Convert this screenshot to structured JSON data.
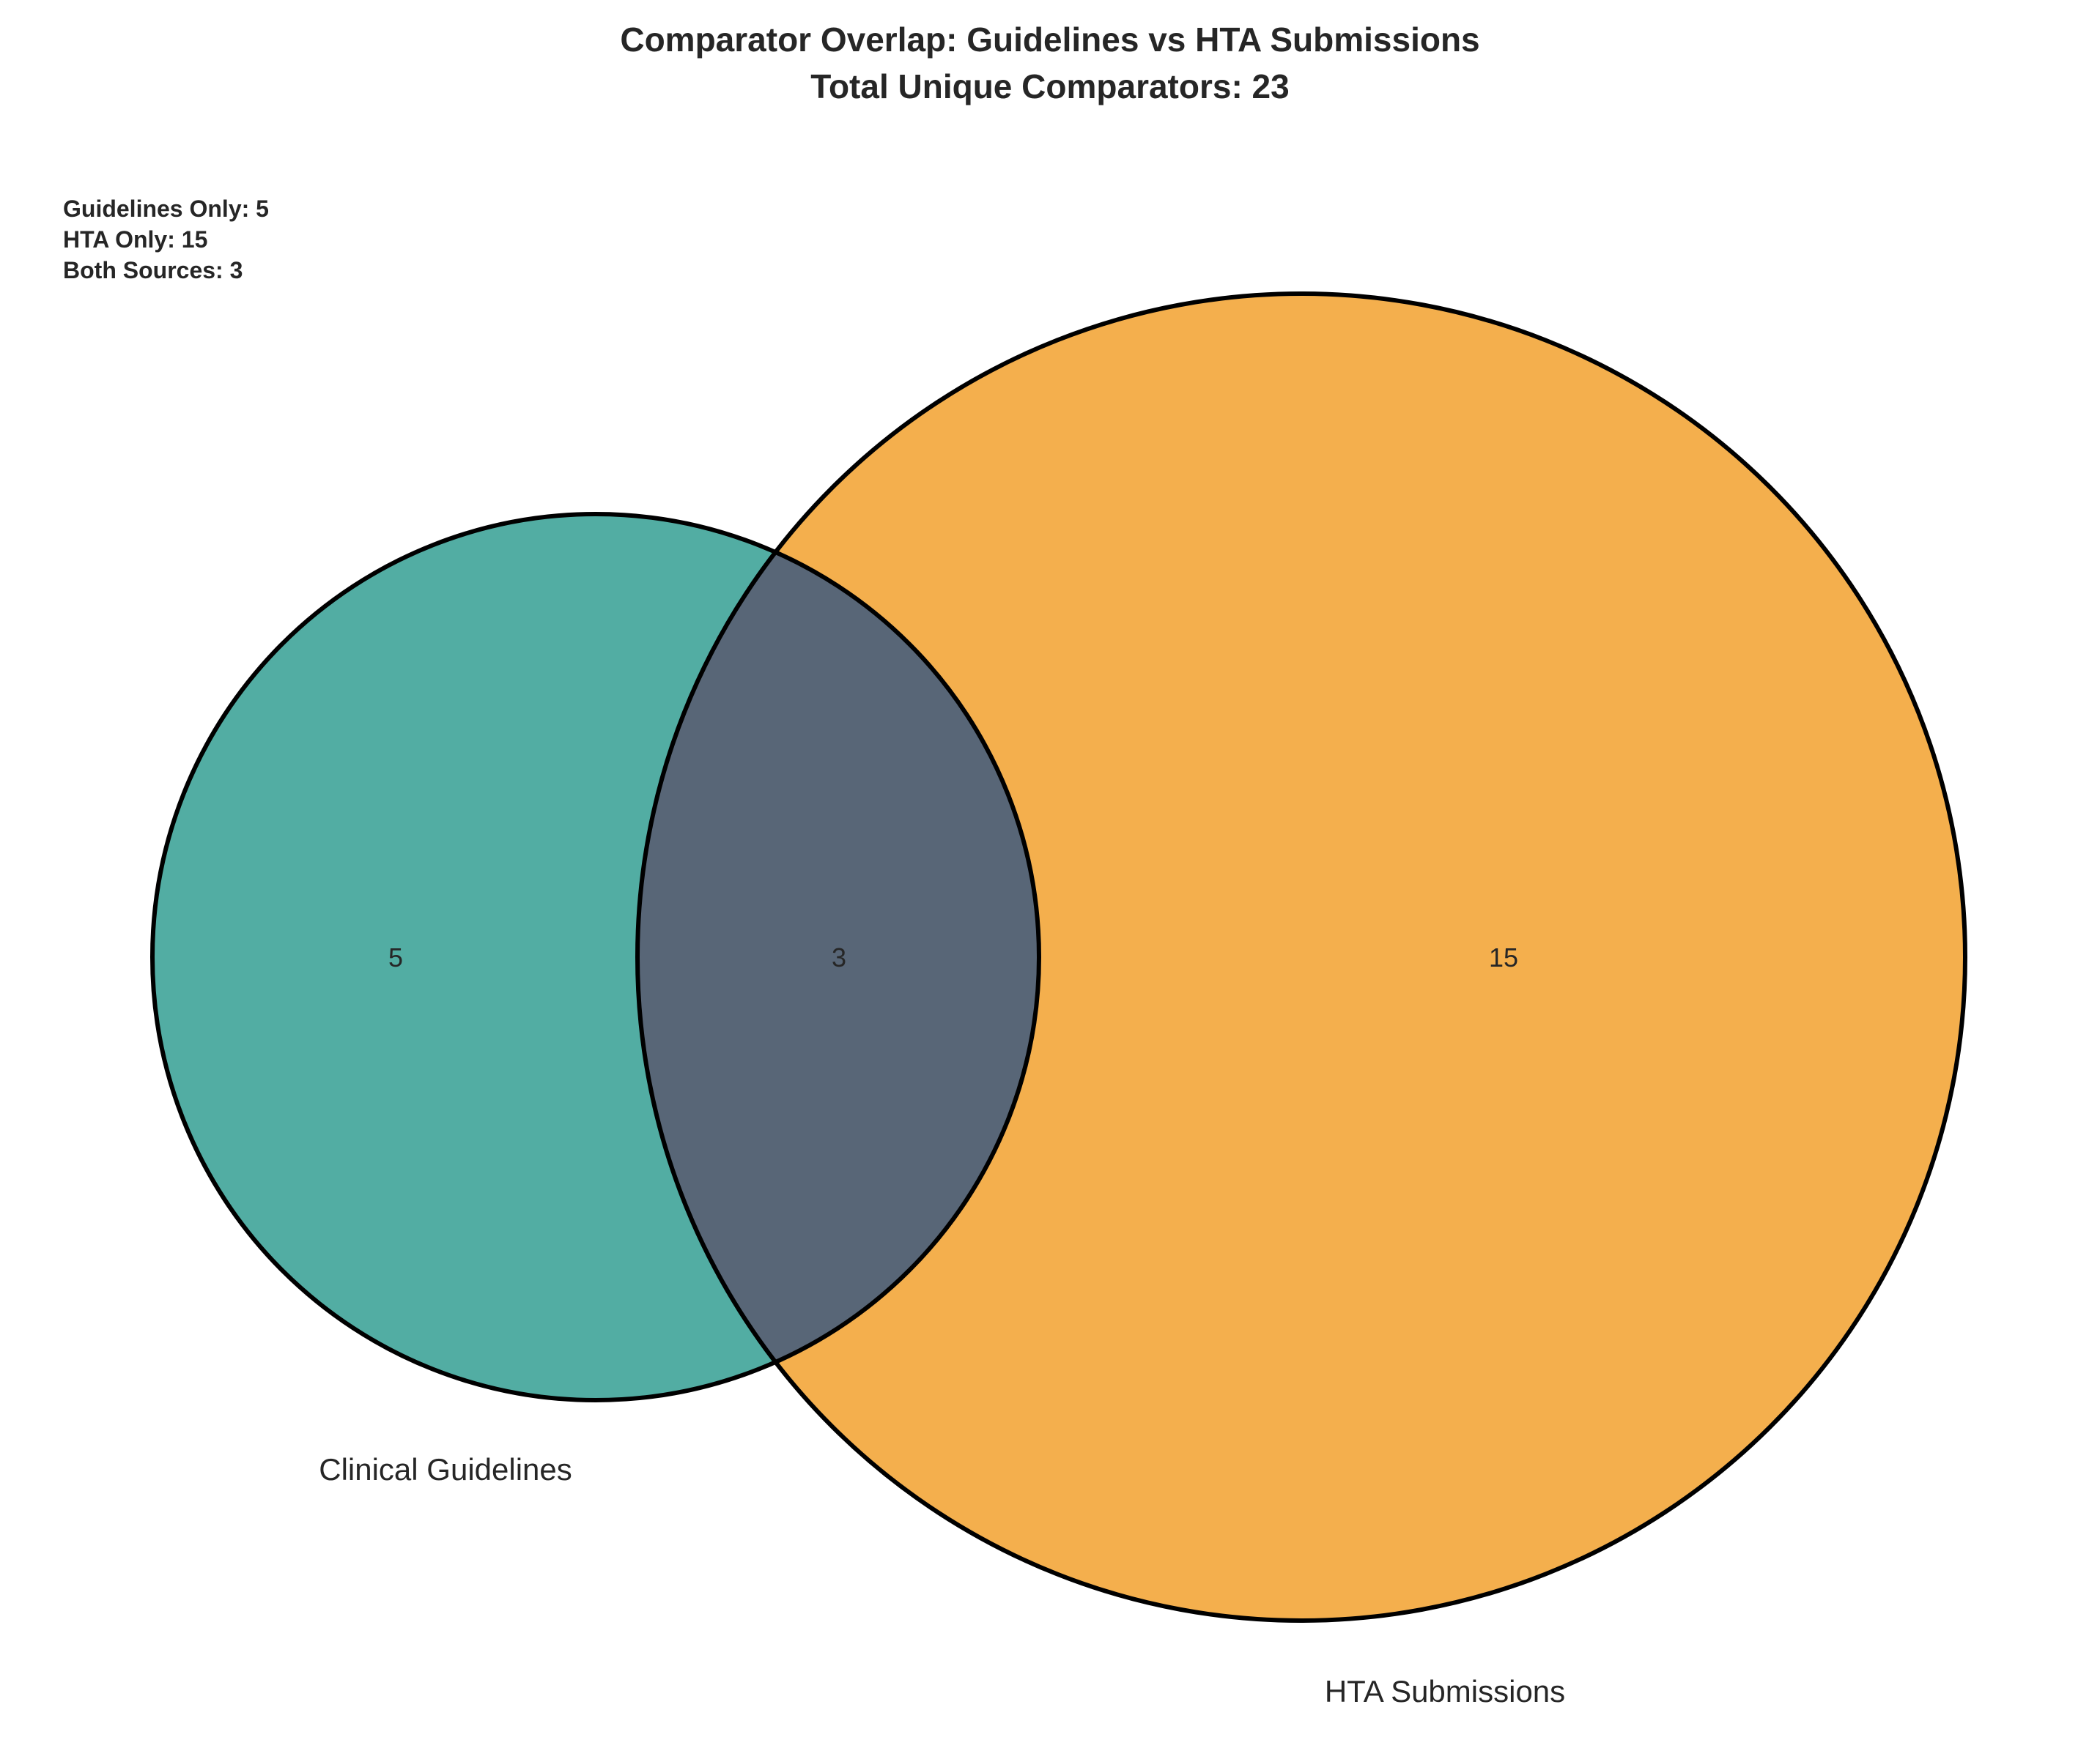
{
  "title": {
    "line1": "Comparator Overlap: Guidelines vs HTA Submissions",
    "line2": "Total Unique Comparators: 23"
  },
  "summary": {
    "guidelines_only": "Guidelines Only: 5",
    "hta_only": "HTA Only: 15",
    "both_sources": "Both Sources: 3"
  },
  "sets": {
    "guidelines": {
      "label": "Clinical Guidelines",
      "only_count": "5",
      "color": "#52ada3"
    },
    "hta": {
      "label": "HTA Submissions",
      "only_count": "15",
      "color": "#f4af4d"
    },
    "overlap": {
      "count": "3",
      "color": "#586677"
    }
  },
  "colors": {
    "outline": "#000000",
    "text": "#262626",
    "background": "#ffffff"
  }
}
